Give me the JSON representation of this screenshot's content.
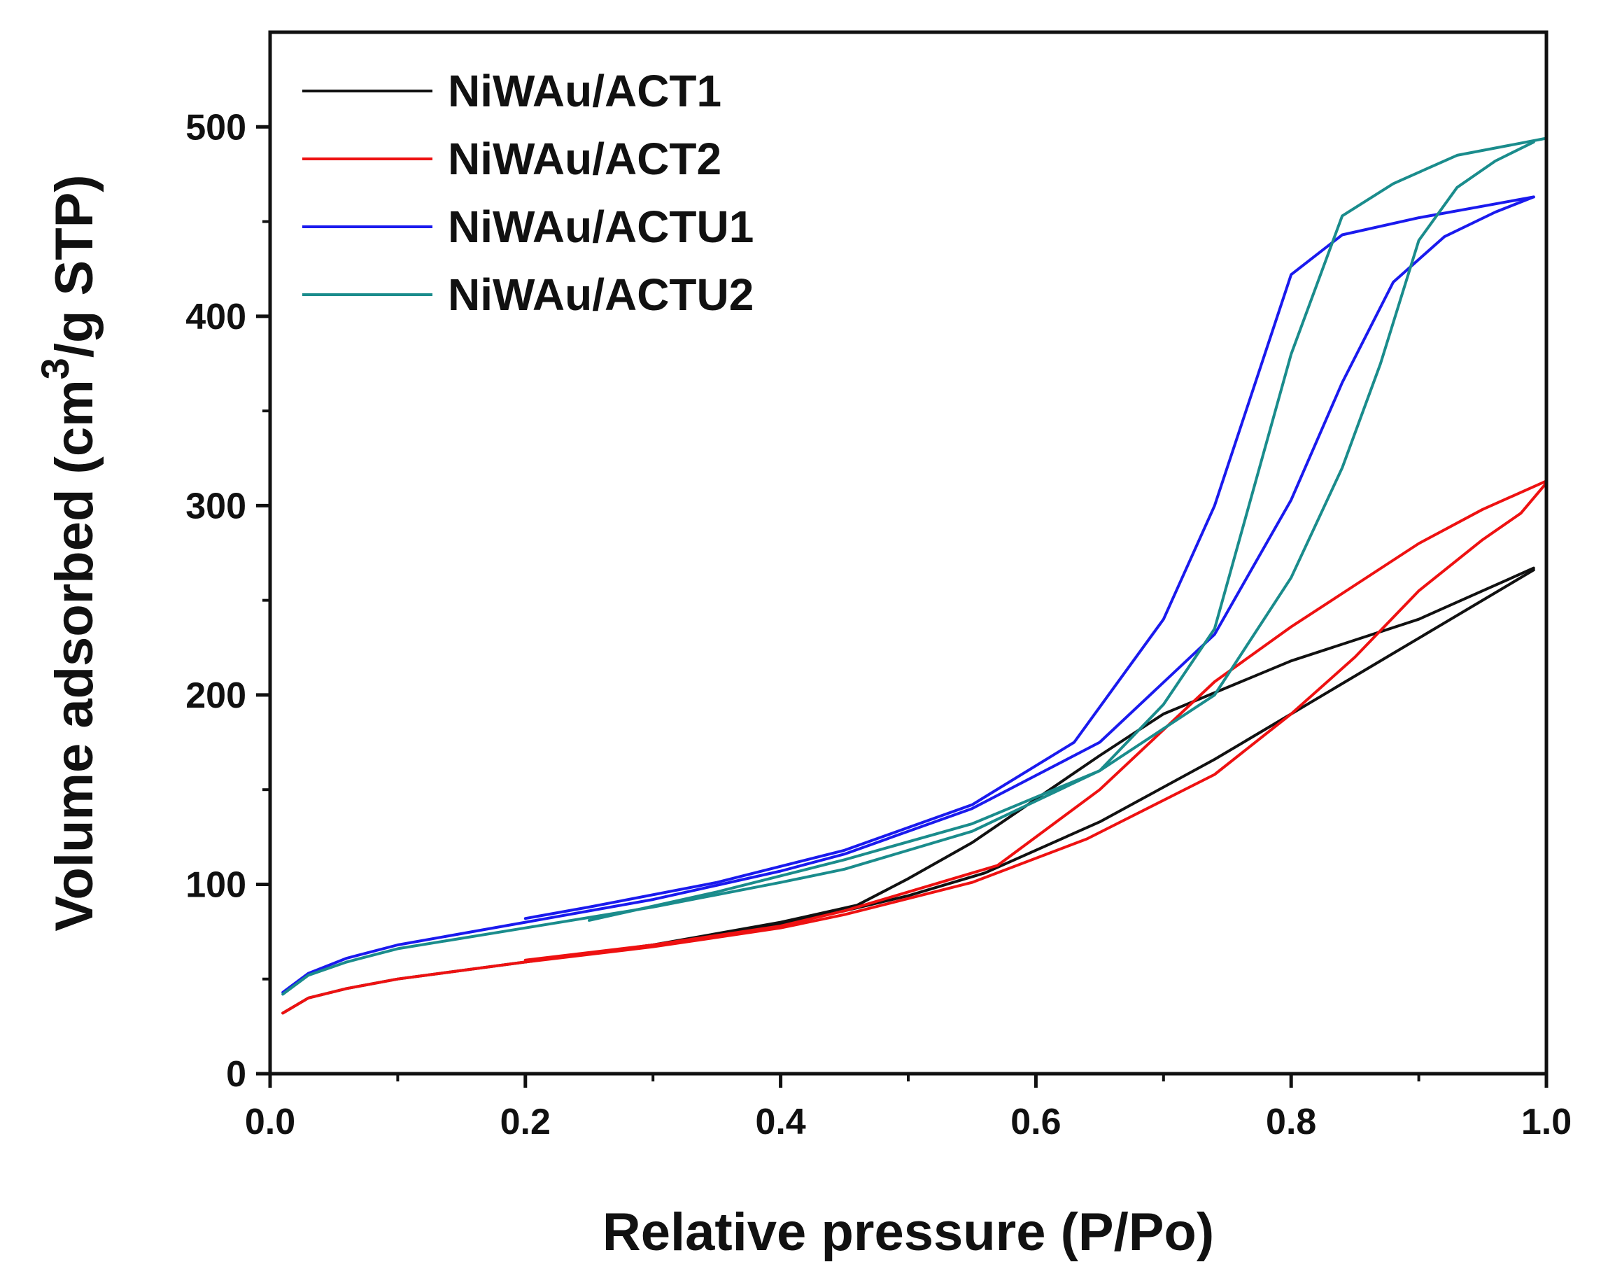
{
  "chart_data": {
    "type": "line",
    "title": "",
    "xlabel": "Relative pressure (P/Po)",
    "ylabel_parts": {
      "pre": "Volume adsorbed (cm",
      "sup": "3",
      "post": "/g STP)"
    },
    "xlim": [
      0.0,
      1.0
    ],
    "ylim": [
      0,
      550
    ],
    "x_ticks": [
      0.0,
      0.2,
      0.4,
      0.6,
      0.8,
      1.0
    ],
    "x_tick_labels": [
      "0.0",
      "0.2",
      "0.4",
      "0.6",
      "0.8",
      "1.0"
    ],
    "y_ticks": [
      0,
      100,
      200,
      300,
      400,
      500
    ],
    "y_tick_labels": [
      "0",
      "100",
      "200",
      "300",
      "400",
      "500"
    ],
    "grid": false,
    "legend_position": "top-left",
    "series": [
      {
        "name": "NiWAu/ACT1",
        "color": "#111111",
        "adsorption": [
          [
            0.01,
            32
          ],
          [
            0.03,
            40
          ],
          [
            0.06,
            45
          ],
          [
            0.1,
            50
          ],
          [
            0.2,
            59
          ],
          [
            0.3,
            68
          ],
          [
            0.4,
            79
          ],
          [
            0.45,
            86
          ],
          [
            0.5,
            94
          ],
          [
            0.56,
            106
          ],
          [
            0.65,
            133
          ],
          [
            0.74,
            166
          ],
          [
            0.8,
            190
          ],
          [
            0.88,
            222
          ],
          [
            0.95,
            250
          ],
          [
            0.99,
            266
          ]
        ],
        "desorption": [
          [
            0.99,
            267
          ],
          [
            0.95,
            255
          ],
          [
            0.9,
            240
          ],
          [
            0.8,
            218
          ],
          [
            0.7,
            190
          ],
          [
            0.65,
            168
          ],
          [
            0.6,
            145
          ],
          [
            0.55,
            122
          ],
          [
            0.5,
            103
          ],
          [
            0.46,
            89
          ],
          [
            0.4,
            80
          ],
          [
            0.3,
            68
          ],
          [
            0.2,
            59
          ]
        ]
      },
      {
        "name": "NiWAu/ACT2",
        "color": "#ee1111",
        "adsorption": [
          [
            0.01,
            32
          ],
          [
            0.03,
            40
          ],
          [
            0.06,
            45
          ],
          [
            0.1,
            50
          ],
          [
            0.2,
            59
          ],
          [
            0.3,
            67
          ],
          [
            0.4,
            77
          ],
          [
            0.45,
            84
          ],
          [
            0.55,
            101
          ],
          [
            0.64,
            124
          ],
          [
            0.74,
            158
          ],
          [
            0.8,
            190
          ],
          [
            0.85,
            220
          ],
          [
            0.9,
            255
          ],
          [
            0.95,
            282
          ],
          [
            0.98,
            296
          ],
          [
            1.0,
            312
          ]
        ],
        "desorption": [
          [
            1.0,
            313
          ],
          [
            0.95,
            298
          ],
          [
            0.9,
            280
          ],
          [
            0.85,
            258
          ],
          [
            0.8,
            236
          ],
          [
            0.74,
            207
          ],
          [
            0.65,
            150
          ],
          [
            0.57,
            110
          ],
          [
            0.5,
            96
          ],
          [
            0.45,
            86
          ],
          [
            0.4,
            78
          ],
          [
            0.3,
            68
          ],
          [
            0.2,
            60
          ]
        ]
      },
      {
        "name": "NiWAu/ACTU1",
        "color": "#1a1aee",
        "adsorption": [
          [
            0.01,
            43
          ],
          [
            0.03,
            53
          ],
          [
            0.06,
            61
          ],
          [
            0.1,
            68
          ],
          [
            0.2,
            80
          ],
          [
            0.3,
            92
          ],
          [
            0.4,
            107
          ],
          [
            0.45,
            116
          ],
          [
            0.55,
            140
          ],
          [
            0.65,
            175
          ],
          [
            0.74,
            232
          ],
          [
            0.8,
            303
          ],
          [
            0.84,
            365
          ],
          [
            0.88,
            418
          ],
          [
            0.92,
            442
          ],
          [
            0.96,
            455
          ],
          [
            0.99,
            463
          ]
        ],
        "desorption": [
          [
            0.99,
            463
          ],
          [
            0.9,
            452
          ],
          [
            0.84,
            443
          ],
          [
            0.8,
            422
          ],
          [
            0.74,
            300
          ],
          [
            0.7,
            240
          ],
          [
            0.63,
            175
          ],
          [
            0.55,
            142
          ],
          [
            0.45,
            118
          ],
          [
            0.35,
            101
          ],
          [
            0.25,
            88
          ],
          [
            0.2,
            82
          ]
        ]
      },
      {
        "name": "NiWAu/ACTU2",
        "color": "#1a8c8c",
        "adsorption": [
          [
            0.01,
            42
          ],
          [
            0.03,
            52
          ],
          [
            0.06,
            59
          ],
          [
            0.1,
            66
          ],
          [
            0.2,
            77
          ],
          [
            0.3,
            88
          ],
          [
            0.4,
            101
          ],
          [
            0.45,
            108
          ],
          [
            0.55,
            128
          ],
          [
            0.65,
            160
          ],
          [
            0.74,
            200
          ],
          [
            0.8,
            262
          ],
          [
            0.84,
            320
          ],
          [
            0.87,
            375
          ],
          [
            0.9,
            440
          ],
          [
            0.93,
            468
          ],
          [
            0.96,
            482
          ],
          [
            0.99,
            492
          ]
        ],
        "desorption": [
          [
            1.0,
            494
          ],
          [
            0.93,
            485
          ],
          [
            0.88,
            470
          ],
          [
            0.84,
            453
          ],
          [
            0.8,
            380
          ],
          [
            0.74,
            235
          ],
          [
            0.7,
            195
          ],
          [
            0.65,
            160
          ],
          [
            0.55,
            132
          ],
          [
            0.45,
            113
          ],
          [
            0.35,
            96
          ],
          [
            0.25,
            81
          ]
        ]
      }
    ]
  }
}
